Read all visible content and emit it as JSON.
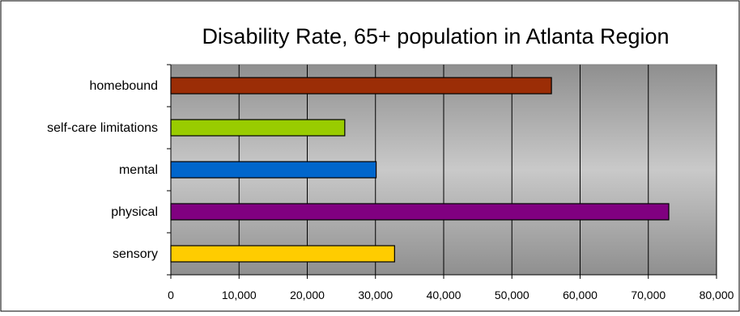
{
  "chart_data": {
    "type": "bar",
    "orientation": "horizontal",
    "title": "Disability Rate, 65+ population in Atlanta Region",
    "xlabel": "",
    "ylabel": "",
    "categories": [
      "homebound",
      "self-care limitations",
      "mental",
      "physical",
      "sensory"
    ],
    "values": [
      55800,
      25500,
      30100,
      73000,
      32800
    ],
    "colors": [
      "#9b2d06",
      "#99cc00",
      "#0066cc",
      "#800080",
      "#ffcc00"
    ],
    "xlim": [
      0,
      80000
    ],
    "x_ticks": [
      0,
      10000,
      20000,
      30000,
      40000,
      50000,
      60000,
      70000,
      80000
    ],
    "x_tick_labels": [
      "0",
      "10,000",
      "20,000",
      "30,000",
      "40,000",
      "50,000",
      "60,000",
      "70,000",
      "80,000"
    ],
    "grid": true,
    "legend": "none",
    "plot_background": "gradient-gray"
  }
}
